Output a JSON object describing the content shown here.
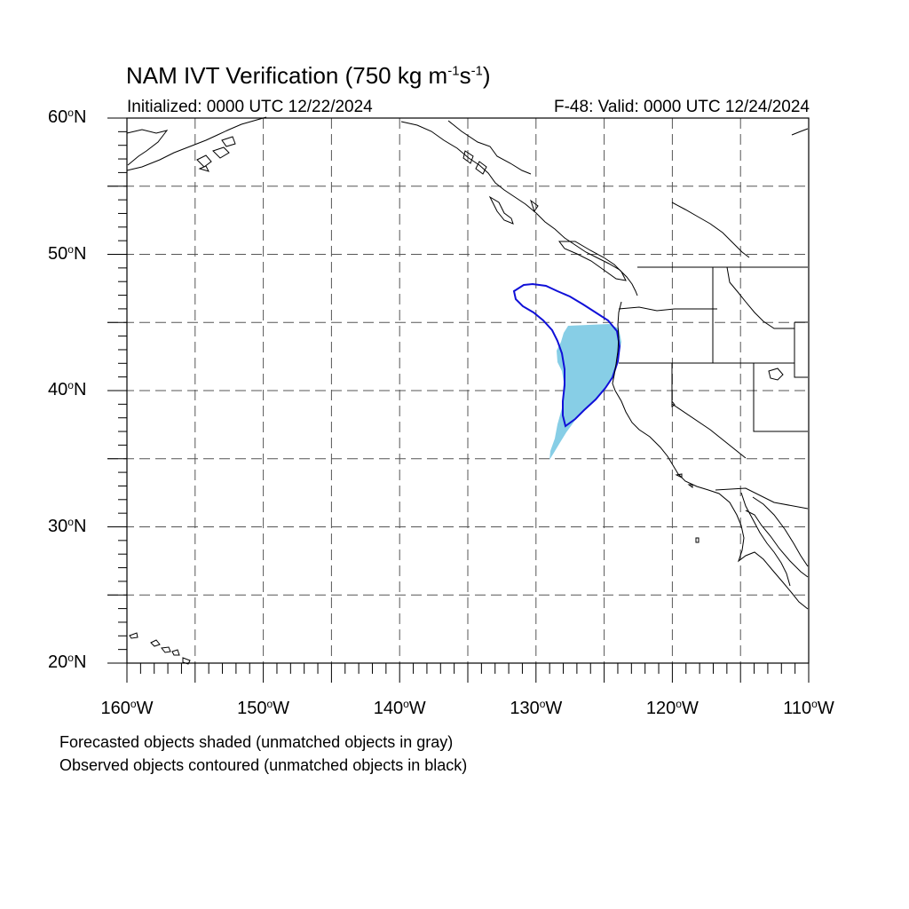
{
  "header": {
    "title_prefix": "NAM IVT Verification (750 kg m",
    "title_exp1": "-1",
    "title_mid": "s",
    "title_exp2": "-1",
    "title_suffix": ")",
    "initialized": "Initialized: 0000 UTC 12/22/2024",
    "valid": "F-48: Valid: 0000 UTC 12/24/2024"
  },
  "axes": {
    "lat_labels": [
      {
        "num": "60",
        "deg": "o",
        "hemi": "N"
      },
      {
        "num": "50",
        "deg": "o",
        "hemi": "N"
      },
      {
        "num": "40",
        "deg": "o",
        "hemi": "N"
      },
      {
        "num": "30",
        "deg": "o",
        "hemi": "N"
      },
      {
        "num": "20",
        "deg": "o",
        "hemi": "N"
      }
    ],
    "lon_labels": [
      {
        "num": "160",
        "deg": "o",
        "hemi": "W"
      },
      {
        "num": "150",
        "deg": "o",
        "hemi": "W"
      },
      {
        "num": "140",
        "deg": "o",
        "hemi": "W"
      },
      {
        "num": "130",
        "deg": "o",
        "hemi": "W"
      },
      {
        "num": "120",
        "deg": "o",
        "hemi": "W"
      },
      {
        "num": "110",
        "deg": "o",
        "hemi": "W"
      }
    ],
    "lon_range": [
      -160,
      -110
    ],
    "lat_range": [
      20,
      60
    ],
    "grid": "dashed every 5 degrees"
  },
  "legend": {
    "line1": "Forecasted objects shaded (unmatched objects in gray)",
    "line2": "Observed objects contoured (unmatched objects in black)"
  },
  "colors": {
    "forecast_fill": "#87CEE6",
    "observed_contour": "#1010D8",
    "coastline": "#000000",
    "grid": "#555555"
  }
}
